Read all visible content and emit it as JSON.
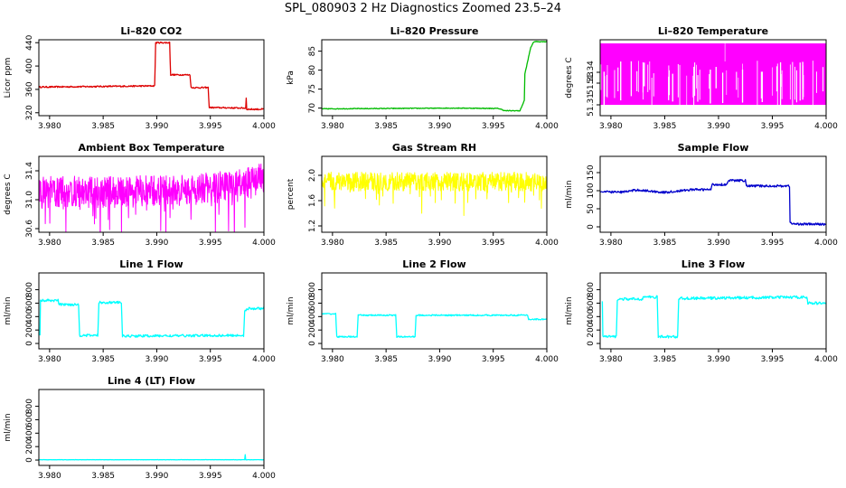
{
  "title": "SPL_080903  2 Hz Diagnostics Zoomed 23.5–24",
  "colors": {
    "red": "#dd0000",
    "green": "#00bb00",
    "magenta": "#ff00ff",
    "yellow": "#ffff00",
    "blue": "#0000cc",
    "cyan": "#00ffff",
    "axis": "#000000"
  },
  "chart_data": [
    {
      "type": "line",
      "title": "Li–820 CO2",
      "ylabel": "Licor ppm",
      "color": "red",
      "xlim": [
        3.979,
        4.0
      ],
      "ylim": [
        315,
        445
      ],
      "xticks": [
        "3.980",
        "3.985",
        "3.990",
        "3.995",
        "4.000"
      ],
      "yticks": [
        {
          "v": 320,
          "label": "320"
        },
        {
          "v": 360,
          "label": "360"
        },
        {
          "v": 400,
          "label": "400"
        },
        {
          "v": 440,
          "label": "440"
        }
      ],
      "noise": 1.2,
      "points": [
        [
          3.979,
          364
        ],
        [
          3.9898,
          366
        ],
        [
          3.9899,
          440
        ],
        [
          3.9912,
          440
        ],
        [
          3.9913,
          385
        ],
        [
          3.9931,
          385
        ],
        [
          3.9932,
          363
        ],
        [
          3.9948,
          363
        ],
        [
          3.9949,
          329
        ],
        [
          3.9983,
          328
        ],
        [
          3.99835,
          345
        ],
        [
          3.9984,
          326
        ],
        [
          4.0,
          326
        ]
      ]
    },
    {
      "type": "line",
      "title": "Li–820 Pressure",
      "ylabel": "kPa",
      "color": "green",
      "xlim": [
        3.979,
        4.0
      ],
      "ylim": [
        68,
        88
      ],
      "xticks": [
        "3.980",
        "3.985",
        "3.990",
        "3.995",
        "4.000"
      ],
      "yticks": [
        {
          "v": 70,
          "label": "70"
        },
        {
          "v": 75,
          "label": "75"
        },
        {
          "v": 80,
          "label": "80"
        },
        {
          "v": 85,
          "label": "85"
        }
      ],
      "noise": 0.1,
      "points": [
        [
          3.979,
          69.8
        ],
        [
          3.9915,
          70.0
        ],
        [
          3.9955,
          69.9
        ],
        [
          3.9961,
          69.3
        ],
        [
          3.9975,
          69.3
        ],
        [
          3.9979,
          72
        ],
        [
          3.99795,
          79
        ],
        [
          3.9985,
          86
        ],
        [
          3.9988,
          87.5
        ],
        [
          4.0,
          87.5
        ]
      ]
    },
    {
      "type": "band",
      "title": "Li–820 Temperature",
      "ylabel": "degrees C",
      "color": "magenta",
      "xlim": [
        3.979,
        4.0
      ],
      "ylim": [
        51.3,
        51.37
      ],
      "xticks": [
        "3.980",
        "3.985",
        "3.990",
        "3.995",
        "4.000"
      ],
      "yticks": [
        {
          "v": 51.31,
          "label": "51.31"
        },
        {
          "v": 51.33,
          "label": "51.33"
        },
        {
          "v": 51.34,
          "label": "51.34"
        }
      ],
      "points": [
        [
          3.979,
          51.31
        ],
        [
          4.0,
          51.37
        ]
      ]
    },
    {
      "type": "noise",
      "title": "Ambient Box Temperature",
      "ylabel": "degrees C",
      "color": "magenta",
      "xlim": [
        3.979,
        4.0
      ],
      "ylim": [
        30.55,
        31.6
      ],
      "xticks": [
        "3.980",
        "3.985",
        "3.990",
        "3.995",
        "4.000"
      ],
      "yticks": [
        {
          "v": 30.6,
          "label": "30.6"
        },
        {
          "v": 31.0,
          "label": "31.0"
        },
        {
          "v": 31.4,
          "label": "31.4"
        }
      ],
      "noise": 0.22,
      "points": [
        [
          3.979,
          31.1
        ],
        [
          3.992,
          31.12
        ],
        [
          3.998,
          31.2
        ],
        [
          4.0,
          31.3
        ]
      ]
    },
    {
      "type": "noise",
      "title": "Gas Stream RH",
      "ylabel": "percent",
      "color": "yellow",
      "xlim": [
        3.979,
        4.0
      ],
      "ylim": [
        1.1,
        2.3
      ],
      "xticks": [
        "3.980",
        "3.985",
        "3.990",
        "3.995",
        "4.000"
      ],
      "yticks": [
        {
          "v": 1.2,
          "label": "1.2"
        },
        {
          "v": 1.6,
          "label": "1.6"
        },
        {
          "v": 2.0,
          "label": "2.0"
        }
      ],
      "noise": 0.15,
      "points": [
        [
          3.979,
          1.9
        ],
        [
          4.0,
          1.9
        ]
      ]
    },
    {
      "type": "line",
      "title": "Sample Flow",
      "ylabel": "ml/min",
      "color": "blue",
      "xlim": [
        3.979,
        4.0
      ],
      "ylim": [
        -15,
        195
      ],
      "xticks": [
        "3.980",
        "3.985",
        "3.990",
        "3.995",
        "4.000"
      ],
      "yticks": [
        {
          "v": 0,
          "label": "0"
        },
        {
          "v": 50,
          "label": "50"
        },
        {
          "v": 100,
          "label": "100"
        },
        {
          "v": 150,
          "label": "150"
        }
      ],
      "noise": 3,
      "points": [
        [
          3.979,
          97
        ],
        [
          3.981,
          96
        ],
        [
          3.9825,
          102
        ],
        [
          3.985,
          95
        ],
        [
          3.9875,
          103
        ],
        [
          3.9893,
          103
        ],
        [
          3.9894,
          117
        ],
        [
          3.9908,
          117
        ],
        [
          3.9909,
          128
        ],
        [
          3.9925,
          128
        ],
        [
          3.9926,
          113
        ],
        [
          3.9966,
          113
        ],
        [
          3.99665,
          15
        ],
        [
          3.9968,
          8
        ],
        [
          4.0,
          7
        ]
      ]
    },
    {
      "type": "line",
      "title": "Line 1 Flow",
      "ylabel": "ml/min",
      "color": "cyan",
      "xlim": [
        3.979,
        4.0
      ],
      "ylim": [
        -80,
        1050
      ],
      "xticks": [
        "3.980",
        "3.985",
        "3.990",
        "3.995",
        "4.000"
      ],
      "yticks": [
        {
          "v": 0,
          "label": "0"
        },
        {
          "v": 200,
          "label": "200"
        },
        {
          "v": 400,
          "label": "400"
        },
        {
          "v": 600,
          "label": "600"
        },
        {
          "v": 800,
          "label": "800"
        }
      ],
      "noise": 18,
      "points": [
        [
          3.9791,
          120
        ],
        [
          3.97915,
          640
        ],
        [
          3.9808,
          640
        ],
        [
          3.9809,
          580
        ],
        [
          3.9827,
          580
        ],
        [
          3.9828,
          120
        ],
        [
          3.9845,
          120
        ],
        [
          3.9846,
          610
        ],
        [
          3.9867,
          610
        ],
        [
          3.9868,
          110
        ],
        [
          3.9981,
          120
        ],
        [
          3.9982,
          480
        ],
        [
          3.9986,
          520
        ],
        [
          4.0,
          520
        ]
      ]
    },
    {
      "type": "line",
      "title": "Line 2 Flow",
      "ylabel": "ml/min",
      "color": "cyan",
      "xlim": [
        3.979,
        4.0
      ],
      "ylim": [
        -80,
        1050
      ],
      "xticks": [
        "3.980",
        "3.985",
        "3.990",
        "3.995",
        "4.000"
      ],
      "yticks": [
        {
          "v": 0,
          "label": "0"
        },
        {
          "v": 200,
          "label": "200"
        },
        {
          "v": 400,
          "label": "400"
        },
        {
          "v": 600,
          "label": "600"
        },
        {
          "v": 800,
          "label": "800"
        }
      ],
      "noise": 10,
      "points": [
        [
          3.979,
          440
        ],
        [
          3.9803,
          440
        ],
        [
          3.9804,
          100
        ],
        [
          3.9823,
          100
        ],
        [
          3.9824,
          420
        ],
        [
          3.9859,
          420
        ],
        [
          3.986,
          100
        ],
        [
          3.9877,
          100
        ],
        [
          3.9878,
          420
        ],
        [
          3.9982,
          420
        ],
        [
          3.9983,
          360
        ],
        [
          4.0,
          360
        ]
      ]
    },
    {
      "type": "line",
      "title": "Line 3 Flow",
      "ylabel": "ml/min",
      "color": "cyan",
      "xlim": [
        3.979,
        4.0
      ],
      "ylim": [
        -80,
        1050
      ],
      "xticks": [
        "3.980",
        "3.985",
        "3.990",
        "3.995",
        "4.000"
      ],
      "yticks": [
        {
          "v": 0,
          "label": "0"
        },
        {
          "v": 200,
          "label": "200"
        },
        {
          "v": 400,
          "label": "400"
        },
        {
          "v": 600,
          "label": "600"
        },
        {
          "v": 800,
          "label": "800"
        }
      ],
      "noise": 20,
      "points": [
        [
          3.9792,
          640
        ],
        [
          3.97925,
          100
        ],
        [
          3.9805,
          100
        ],
        [
          3.9806,
          660
        ],
        [
          3.9829,
          660
        ],
        [
          3.983,
          690
        ],
        [
          3.9843,
          690
        ],
        [
          3.9844,
          100
        ],
        [
          3.9862,
          100
        ],
        [
          3.9863,
          670
        ],
        [
          3.9982,
          690
        ],
        [
          3.9983,
          600
        ],
        [
          4.0,
          600
        ]
      ]
    },
    {
      "type": "line",
      "title": "Line 4 (LT) Flow",
      "ylabel": "ml/min",
      "color": "cyan",
      "xlim": [
        3.979,
        4.0
      ],
      "ylim": [
        -80,
        1050
      ],
      "xticks": [
        "3.980",
        "3.985",
        "3.990",
        "3.995",
        "4.000"
      ],
      "yticks": [
        {
          "v": 0,
          "label": "0"
        },
        {
          "v": 200,
          "label": "200"
        },
        {
          "v": 400,
          "label": "400"
        },
        {
          "v": 600,
          "label": "600"
        },
        {
          "v": 800,
          "label": "800"
        }
      ],
      "noise": 2,
      "points": [
        [
          3.979,
          5
        ],
        [
          3.9982,
          5
        ],
        [
          3.99825,
          80
        ],
        [
          3.9983,
          5
        ],
        [
          4.0,
          5
        ]
      ]
    }
  ]
}
